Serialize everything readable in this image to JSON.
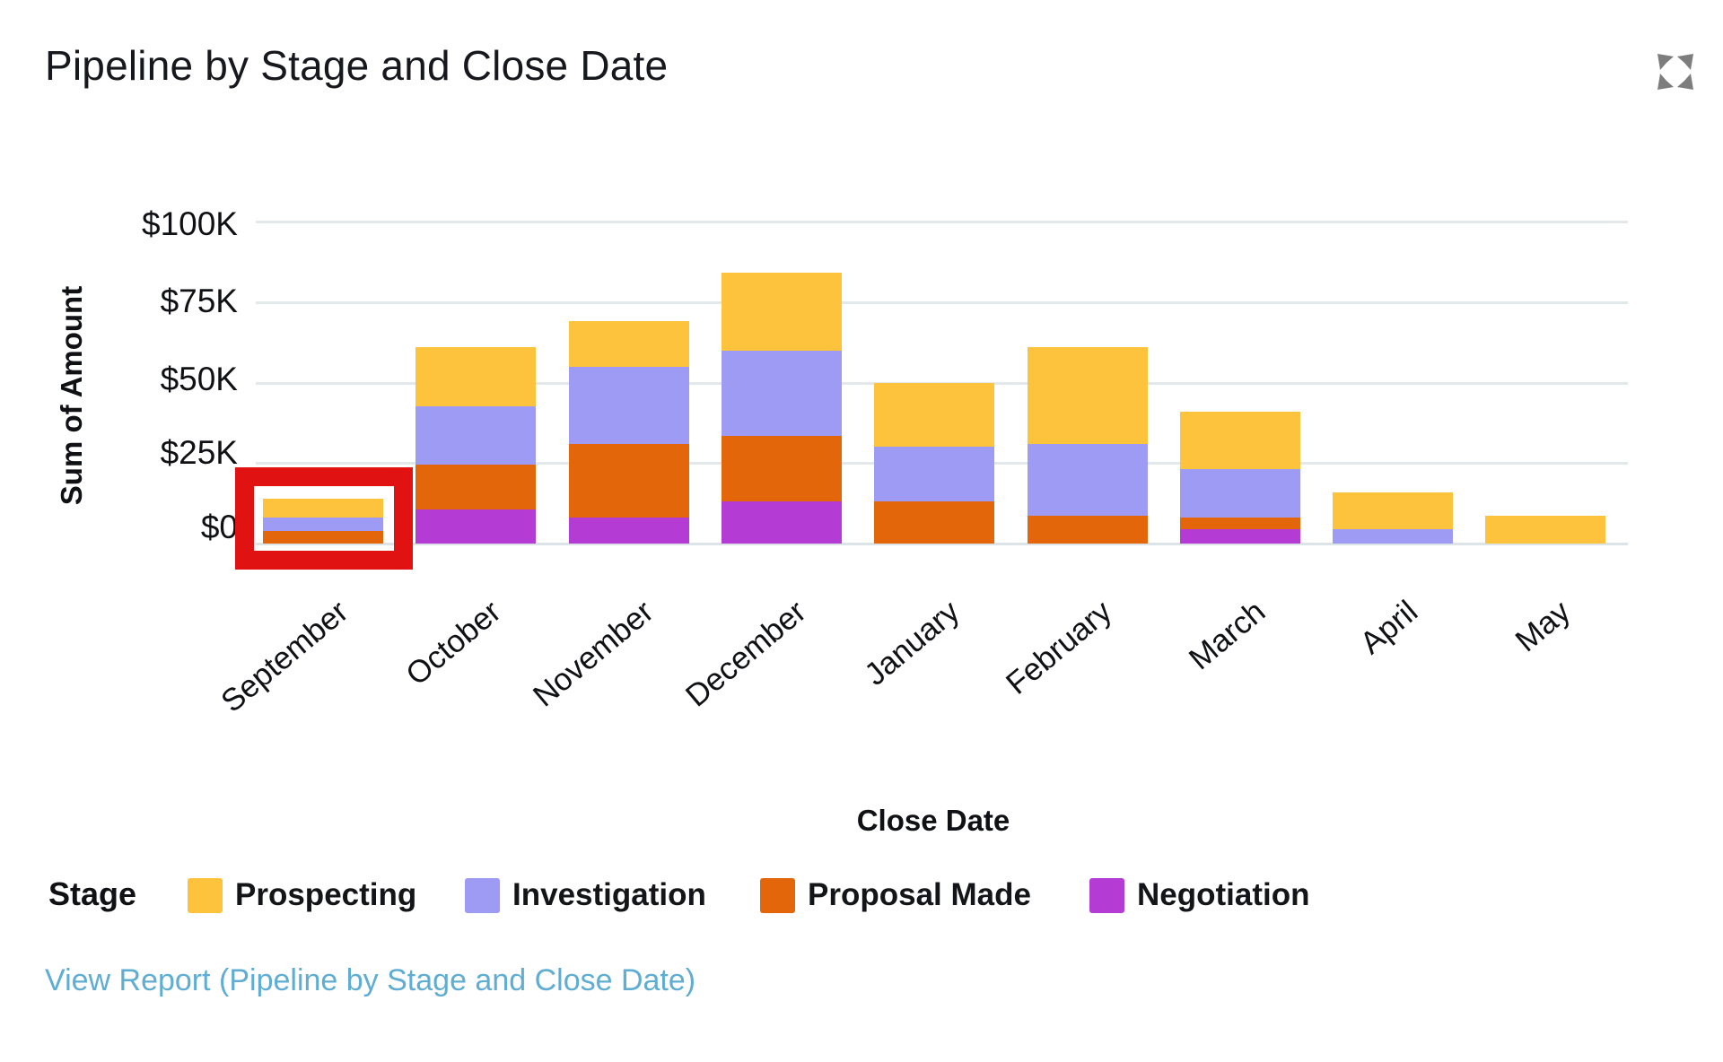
{
  "header": {
    "title": "Pipeline by Stage and Close Date",
    "expand_icon": "expand-icon"
  },
  "chart_data": {
    "type": "bar",
    "stacked": true,
    "title": "Pipeline by Stage and Close Date",
    "xlabel": "Close Date",
    "ylabel": "Sum of Amount",
    "y_ticks": [
      "$100K",
      "$75K",
      "$50K",
      "$25K",
      "$0"
    ],
    "ylim_thousands": [
      0,
      100
    ],
    "grid": true,
    "categories": [
      "September",
      "October",
      "November",
      "December",
      "January",
      "February",
      "March",
      "April",
      "May"
    ],
    "series": [
      {
        "name": "Prospecting",
        "color": "#fdc33c",
        "values_thousands": [
          6,
          18.5,
          14,
          24,
          20,
          30,
          18,
          11.5,
          8.5
        ]
      },
      {
        "name": "Investigation",
        "color": "#9d9bf3",
        "values_thousands": [
          4,
          18,
          24,
          26.5,
          17,
          22.5,
          15,
          4.5,
          0
        ]
      },
      {
        "name": "Proposal Made",
        "color": "#e3660b",
        "values_thousands": [
          4,
          14,
          23,
          20.5,
          13,
          8.5,
          3.5,
          0,
          0
        ]
      },
      {
        "name": "Negotiation",
        "color": "#b43bd4",
        "values_thousands": [
          0,
          10.5,
          8,
          13,
          0,
          0,
          4.5,
          0,
          0
        ]
      }
    ],
    "legend_title": "Stage",
    "legend_position": "bottom"
  },
  "annotation": {
    "highlighted_category": "September",
    "highlight_color": "#e11212"
  },
  "footer": {
    "view_report_label": "View Report (Pipeline by Stage and Close Date)"
  }
}
